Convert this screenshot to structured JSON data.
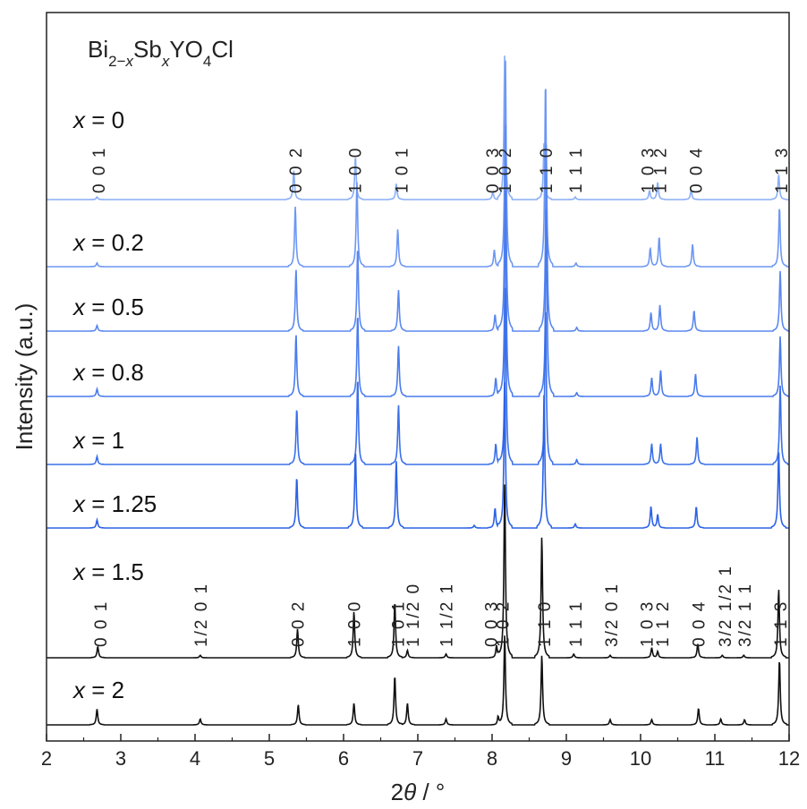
{
  "chart_data": {
    "type": "line",
    "title_parts": {
      "a": "Bi",
      "b": "2−",
      "c": "x",
      "d": "Sb",
      "e": "x",
      "f": "YO",
      "g": "4",
      "h": "Cl"
    },
    "xlabel_parts": {
      "a": "2",
      "b": "θ",
      "c": " / °"
    },
    "ylabel": "Intensity (a.u.)",
    "xlim": [
      2,
      12
    ],
    "x_ticks": [
      "2",
      "3",
      "4",
      "5",
      "6",
      "7",
      "8",
      "9",
      "10",
      "11",
      "12"
    ],
    "grid": false,
    "series": [
      {
        "name_var": "x",
        "name_value": " = 0",
        "color": "#8aaef7",
        "peaks": [
          [
            2.68,
            0.02
          ],
          [
            5.33,
            0.22
          ],
          [
            6.16,
            0.33
          ],
          [
            6.71,
            0.12
          ],
          [
            8.01,
            0.06
          ],
          [
            8.17,
            1.1
          ],
          [
            8.7,
            0.43
          ],
          [
            9.12,
            0.02
          ],
          [
            10.12,
            0.07
          ],
          [
            10.23,
            0.13
          ],
          [
            10.68,
            0.07
          ],
          [
            11.86,
            0.19
          ]
        ],
        "peak_labels": [
          {
            "x": 2.7,
            "text": "0 0 1"
          },
          {
            "x": 5.35,
            "text": "0 0 2"
          },
          {
            "x": 6.15,
            "text": "1 0 0"
          },
          {
            "x": 6.78,
            "text": "1 0 1"
          },
          {
            "x": 8.0,
            "text": "0 0 3"
          },
          {
            "x": 8.17,
            "text": "1 0 2"
          },
          {
            "x": 8.72,
            "text": "1 1 0"
          },
          {
            "x": 9.12,
            "text": "1 1 1"
          },
          {
            "x": 10.09,
            "text": "1 0 3"
          },
          {
            "x": 10.26,
            "text": "1 1 2"
          },
          {
            "x": 10.74,
            "text": "0 0 4"
          },
          {
            "x": 11.89,
            "text": "1 1 3"
          }
        ]
      },
      {
        "name_var": "x",
        "name_value": " = 0.2",
        "color": "#6d97f4",
        "peaks": [
          [
            2.68,
            0.02
          ],
          [
            5.35,
            0.32
          ],
          [
            6.18,
            0.45
          ],
          [
            6.73,
            0.2
          ],
          [
            8.03,
            0.09
          ],
          [
            8.18,
            1.1
          ],
          [
            8.72,
            1.0
          ],
          [
            9.13,
            0.02
          ],
          [
            10.13,
            0.1
          ],
          [
            10.25,
            0.16
          ],
          [
            10.7,
            0.12
          ],
          [
            11.87,
            0.32
          ]
        ]
      },
      {
        "name_var": "x",
        "name_value": " = 0.5",
        "color": "#5b88f0",
        "peaks": [
          [
            2.68,
            0.03
          ],
          [
            5.36,
            0.33
          ],
          [
            6.19,
            0.45
          ],
          [
            6.74,
            0.22
          ],
          [
            8.04,
            0.09
          ],
          [
            8.18,
            1.1
          ],
          [
            8.73,
            1.0
          ],
          [
            9.14,
            0.02
          ],
          [
            10.14,
            0.1
          ],
          [
            10.26,
            0.14
          ],
          [
            10.72,
            0.11
          ],
          [
            11.88,
            0.32
          ]
        ]
      },
      {
        "name_var": "x",
        "name_value": " = 0.8",
        "color": "#4a7ced",
        "peaks": [
          [
            2.68,
            0.04
          ],
          [
            5.36,
            0.33
          ],
          [
            6.19,
            0.44
          ],
          [
            6.74,
            0.27
          ],
          [
            8.05,
            0.1
          ],
          [
            8.18,
            1.1
          ],
          [
            8.73,
            1.0
          ],
          [
            9.14,
            0.02
          ],
          [
            10.15,
            0.1
          ],
          [
            10.27,
            0.14
          ],
          [
            10.74,
            0.12
          ],
          [
            11.88,
            0.32
          ]
        ]
      },
      {
        "name_var": "x",
        "name_value": " = 1",
        "color": "#3b70ea",
        "peaks": [
          [
            2.68,
            0.05
          ],
          [
            5.37,
            0.35
          ],
          [
            6.19,
            0.54
          ],
          [
            6.74,
            0.37
          ],
          [
            8.05,
            0.13
          ],
          [
            8.18,
            1.1
          ],
          [
            8.72,
            1.0
          ],
          [
            9.14,
            0.03
          ],
          [
            10.15,
            0.13
          ],
          [
            10.27,
            0.13
          ],
          [
            10.76,
            0.17
          ],
          [
            11.88,
            0.49
          ]
        ]
      },
      {
        "name_var": "x",
        "name_value": " = 1.25",
        "color": "#2c62e6",
        "peaks": [
          [
            2.68,
            0.06
          ],
          [
            5.37,
            0.38
          ],
          [
            6.16,
            0.58
          ],
          [
            6.71,
            0.5
          ],
          [
            7.76,
            0.02
          ],
          [
            8.04,
            0.15
          ],
          [
            8.17,
            1.1
          ],
          [
            8.7,
            1.0
          ],
          [
            9.12,
            0.03
          ],
          [
            10.14,
            0.16
          ],
          [
            10.23,
            0.1
          ],
          [
            10.75,
            0.16
          ],
          [
            11.86,
            0.57
          ]
        ]
      },
      {
        "name_var": "x",
        "name_value": " = 1.5",
        "color": "#111111",
        "peaks": [
          [
            2.69,
            0.09
          ],
          [
            4.07,
            0.02
          ],
          [
            5.38,
            0.23
          ],
          [
            6.14,
            0.37
          ],
          [
            6.69,
            0.45
          ],
          [
            6.86,
            0.06
          ],
          [
            7.38,
            0.03
          ],
          [
            8.06,
            0.1
          ],
          [
            8.17,
            1.4
          ],
          [
            8.67,
            0.97
          ],
          [
            9.1,
            0.03
          ],
          [
            9.59,
            0.02
          ],
          [
            10.15,
            0.08
          ],
          [
            10.23,
            0.05
          ],
          [
            10.77,
            0.11
          ],
          [
            11.1,
            0.02
          ],
          [
            11.39,
            0.02
          ],
          [
            11.86,
            0.55
          ]
        ],
        "peak_labels": [
          {
            "x": 2.72,
            "text": "0 0 1"
          },
          {
            "x": 4.07,
            "text": "1/2 0 1"
          },
          {
            "x": 5.38,
            "text": "0 0 2"
          },
          {
            "x": 6.14,
            "text": "1 0 0"
          },
          {
            "x": 6.73,
            "text": "1 0 1"
          },
          {
            "x": 6.93,
            "text": "1 1/2 0"
          },
          {
            "x": 7.38,
            "text": "1 1/2 1"
          },
          {
            "x": 7.98,
            "text": "0 0 3"
          },
          {
            "x": 8.14,
            "text": "1 0 2"
          },
          {
            "x": 8.7,
            "text": "1 1 0"
          },
          {
            "x": 9.12,
            "text": "1 1 1"
          },
          {
            "x": 9.6,
            "text": "3/2 0 1"
          },
          {
            "x": 10.08,
            "text": "1 0 3"
          },
          {
            "x": 10.29,
            "text": "1 1 2"
          },
          {
            "x": 10.78,
            "text": "0 0 4"
          },
          {
            "x": 11.13,
            "text": "3/2 1/2 1"
          },
          {
            "x": 11.4,
            "text": "3/2 1 1"
          },
          {
            "x": 11.88,
            "text": "1 1 3"
          }
        ]
      },
      {
        "name_var": "x",
        "name_value": " = 2",
        "color": "#111111",
        "peaks": [
          [
            2.68,
            0.21
          ],
          [
            4.07,
            0.08
          ],
          [
            5.39,
            0.27
          ],
          [
            6.14,
            0.29
          ],
          [
            6.69,
            0.66
          ],
          [
            6.86,
            0.29
          ],
          [
            7.38,
            0.08
          ],
          [
            8.08,
            0.1
          ],
          [
            8.17,
            1.2
          ],
          [
            8.67,
            0.93
          ],
          [
            9.59,
            0.07
          ],
          [
            10.15,
            0.07
          ],
          [
            10.78,
            0.22
          ],
          [
            11.08,
            0.08
          ],
          [
            11.4,
            0.07
          ],
          [
            11.87,
            0.87
          ]
        ]
      }
    ]
  }
}
